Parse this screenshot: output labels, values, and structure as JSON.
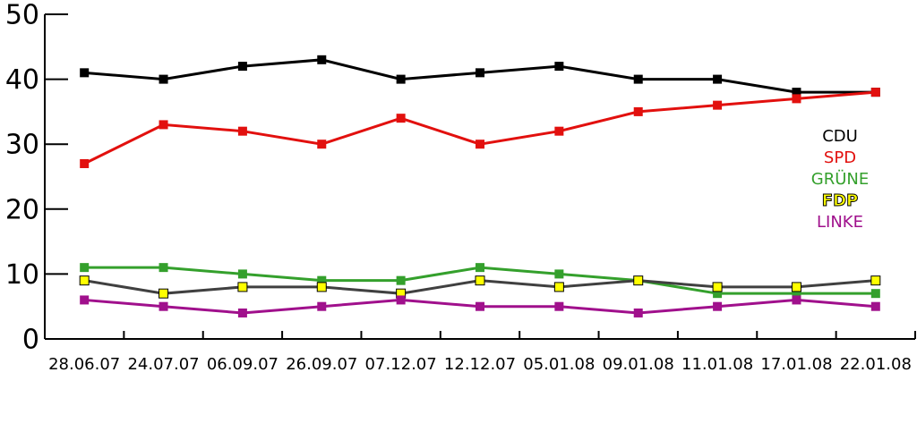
{
  "chart_data": {
    "type": "line",
    "categories": [
      "28.06.07",
      "24.07.07",
      "06.09.07",
      "26.09.07",
      "07.12.07",
      "12.12.07",
      "05.01.08",
      "09.01.08",
      "11.01.08",
      "17.01.08",
      "22.01.08"
    ],
    "series": [
      {
        "name": "CDU",
        "color": "#000000",
        "values": [
          41,
          40,
          42,
          43,
          40,
          41,
          42,
          40,
          40,
          38,
          38
        ]
      },
      {
        "name": "SPD",
        "color": "#e2100e",
        "values": [
          27,
          33,
          32,
          30,
          34,
          30,
          32,
          35,
          36,
          37,
          38
        ]
      },
      {
        "name": "GRÜNE",
        "color": "#34a02c",
        "values": [
          11,
          11,
          10,
          9,
          9,
          11,
          10,
          9,
          7,
          7,
          7
        ]
      },
      {
        "name": "FDP",
        "color": "#404040",
        "marker_color": "#ffff00",
        "values": [
          9,
          7,
          8,
          8,
          7,
          9,
          8,
          9,
          8,
          8,
          9
        ]
      },
      {
        "name": "LINKE",
        "color": "#a0108c",
        "values": [
          6,
          5,
          4,
          5,
          6,
          5,
          5,
          4,
          5,
          6,
          5
        ]
      }
    ],
    "ylim": [
      0,
      50
    ],
    "yticks": [
      0,
      10,
      20,
      30,
      40,
      50
    ],
    "grid": false,
    "legend": "right"
  }
}
